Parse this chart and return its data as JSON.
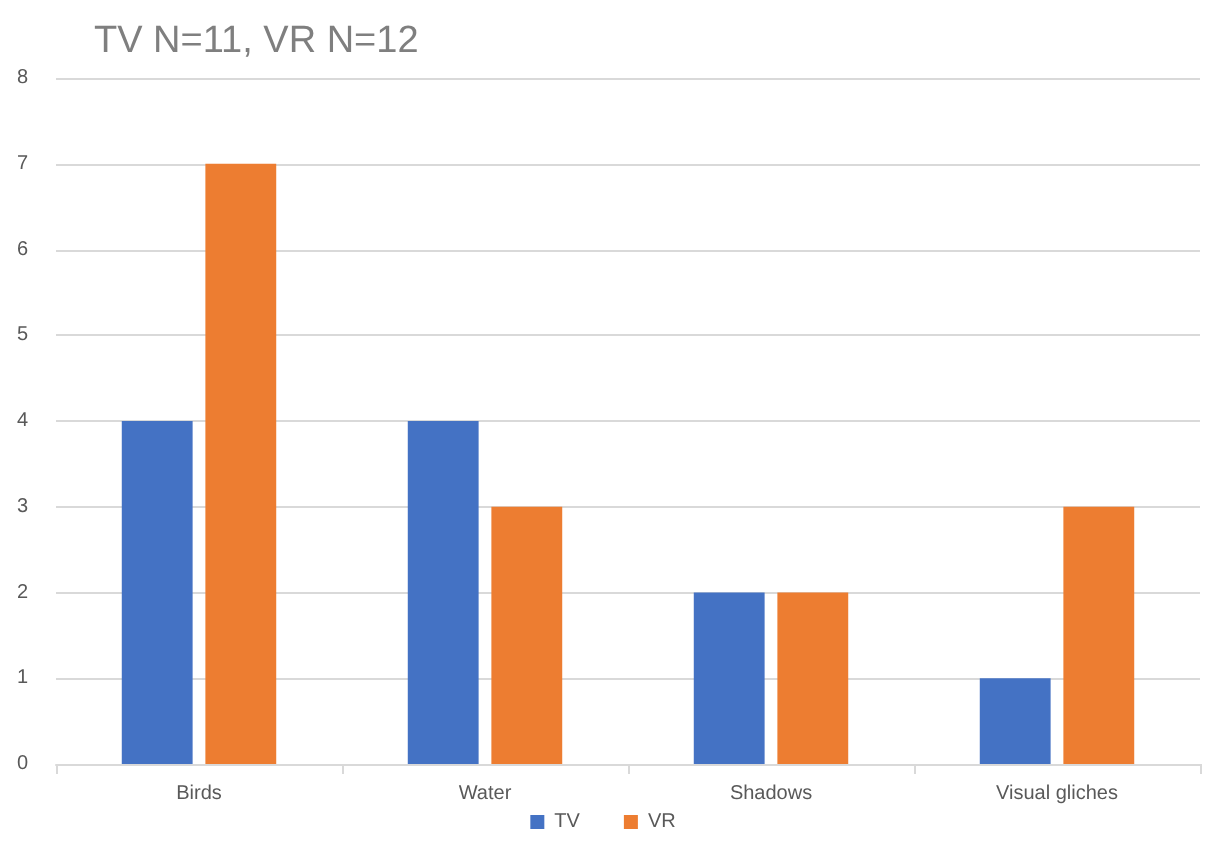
{
  "chart_data": {
    "type": "bar",
    "title": "TV N=11, VR N=12",
    "categories": [
      "Birds",
      "Water",
      "Shadows",
      "Visual gliches"
    ],
    "series": [
      {
        "name": "TV",
        "color": "#4472c4",
        "values": [
          4,
          4,
          2,
          1
        ]
      },
      {
        "name": "VR",
        "color": "#ed7d31",
        "values": [
          7,
          3,
          2,
          3
        ]
      }
    ],
    "ylim": [
      0,
      8
    ],
    "yticks": [
      0,
      1,
      2,
      3,
      4,
      5,
      6,
      7,
      8
    ],
    "grid": "y",
    "legend": "bottom"
  }
}
